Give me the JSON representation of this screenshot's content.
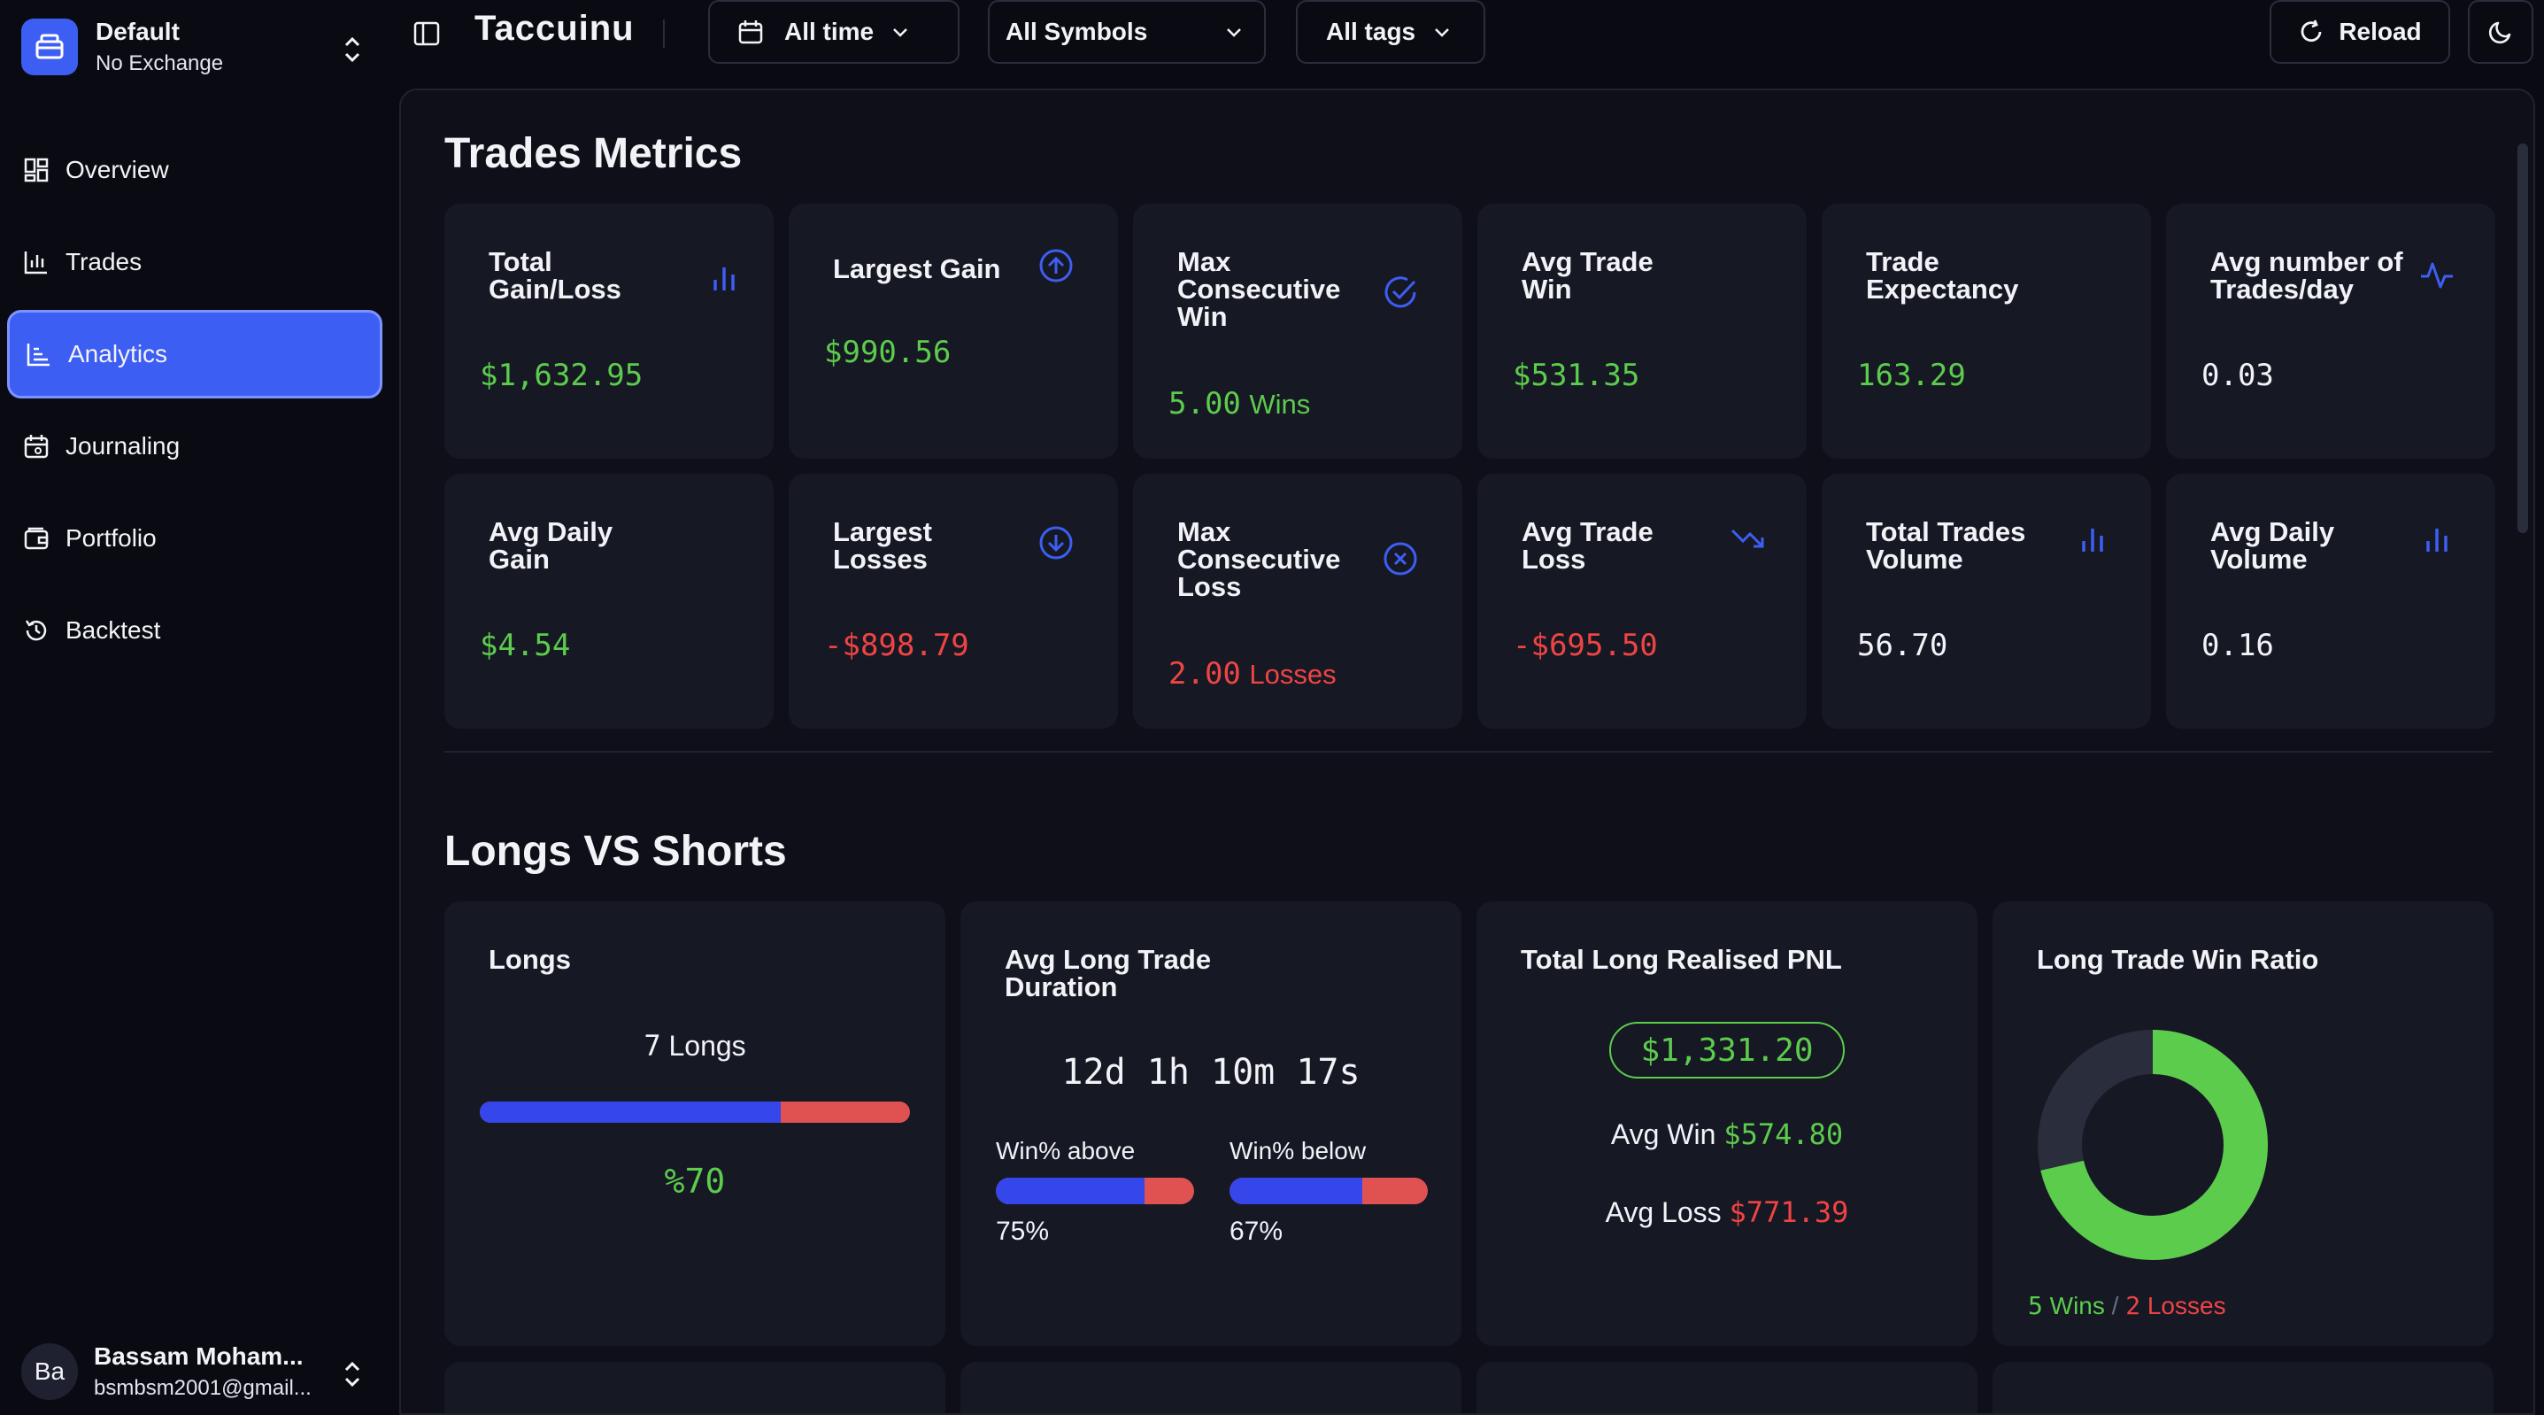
{
  "workspace": {
    "name": "Default",
    "subtitle": "No Exchange"
  },
  "nav": [
    {
      "label": "Overview",
      "icon": "grid-icon"
    },
    {
      "label": "Trades",
      "icon": "chart-icon"
    },
    {
      "label": "Analytics",
      "icon": "analytics-icon",
      "active": true
    },
    {
      "label": "Journaling",
      "icon": "calendar-icon"
    },
    {
      "label": "Portfolio",
      "icon": "wallet-icon"
    },
    {
      "label": "Backtest",
      "icon": "history-icon"
    }
  ],
  "user": {
    "initials": "Ba",
    "name": "Bassam Moham...",
    "email": "bsmbsm2001@gmail..."
  },
  "topbar": {
    "brand": "Taccuinu",
    "time_filter": "All time",
    "symbol_filter": "All Symbols",
    "tag_filter": "All tags",
    "reload_label": "Reload"
  },
  "metrics": {
    "title": "Trades Metrics",
    "cards": [
      {
        "title": "Total Gain/Loss",
        "value": "$1,632.95",
        "color": "green",
        "icon": "bar-chart-icon"
      },
      {
        "title": "Largest Gain",
        "value": "$990.56",
        "color": "green",
        "icon": "arrow-up-circle-icon"
      },
      {
        "title": "Max Consecutive Win",
        "value": "5.00",
        "unit": "Wins",
        "color": "green",
        "icon": "check-circle-icon"
      },
      {
        "title": "Avg Trade Win",
        "value": "$531.35",
        "color": "green"
      },
      {
        "title": "Trade Expectancy",
        "value": "163.29",
        "color": "green"
      },
      {
        "title": "Avg number of Trades/day",
        "value": "0.03",
        "color": "white",
        "icon": "activity-icon"
      },
      {
        "title": "Avg Daily Gain",
        "value": "$4.54",
        "color": "green"
      },
      {
        "title": "Largest Losses",
        "value": "-$898.79",
        "color": "red",
        "icon": "arrow-down-circle-icon"
      },
      {
        "title": "Max Consecutive Loss",
        "value": "2.00",
        "unit": "Losses",
        "color": "red",
        "icon": "x-circle-icon"
      },
      {
        "title": "Avg Trade Loss",
        "value": "-$695.50",
        "color": "red",
        "icon": "trending-down-icon"
      },
      {
        "title": "Total Trades Volume",
        "value": "56.70",
        "color": "white",
        "icon": "bar-chart-icon"
      },
      {
        "title": "Avg Daily Volume",
        "value": "0.16",
        "color": "white",
        "icon": "bar-chart-icon"
      }
    ]
  },
  "longs_shorts": {
    "title": "Longs VS Shorts",
    "longs": {
      "title": "Longs",
      "count": "7",
      "count_label": "Longs",
      "ratio": 0.7,
      "ratio_label": "%70"
    },
    "duration": {
      "title": "Avg Long Trade Duration",
      "value": "12d 1h 10m 17s",
      "above_label": "Win% above",
      "above_pct": "75%",
      "above_ratio": 0.75,
      "below_label": "Win% below",
      "below_pct": "67%",
      "below_ratio": 0.67
    },
    "pnl": {
      "title": "Total Long Realised PNL",
      "total": "$1,331.20",
      "avg_win_label": "Avg Win",
      "avg_win": "$574.80",
      "avg_loss_label": "Avg Loss",
      "avg_loss": "$771.39"
    },
    "win_ratio": {
      "title": "Long Trade Win Ratio",
      "wins": "5",
      "wins_label": "Wins",
      "separator": "/",
      "losses": "2",
      "losses_label": "Losses",
      "win_fraction": 0.714
    }
  },
  "colors": {
    "accent": "#3d5ef2",
    "green": "#5ccc4c",
    "red": "#ef4444",
    "loss_track": "#2a2d3c"
  }
}
